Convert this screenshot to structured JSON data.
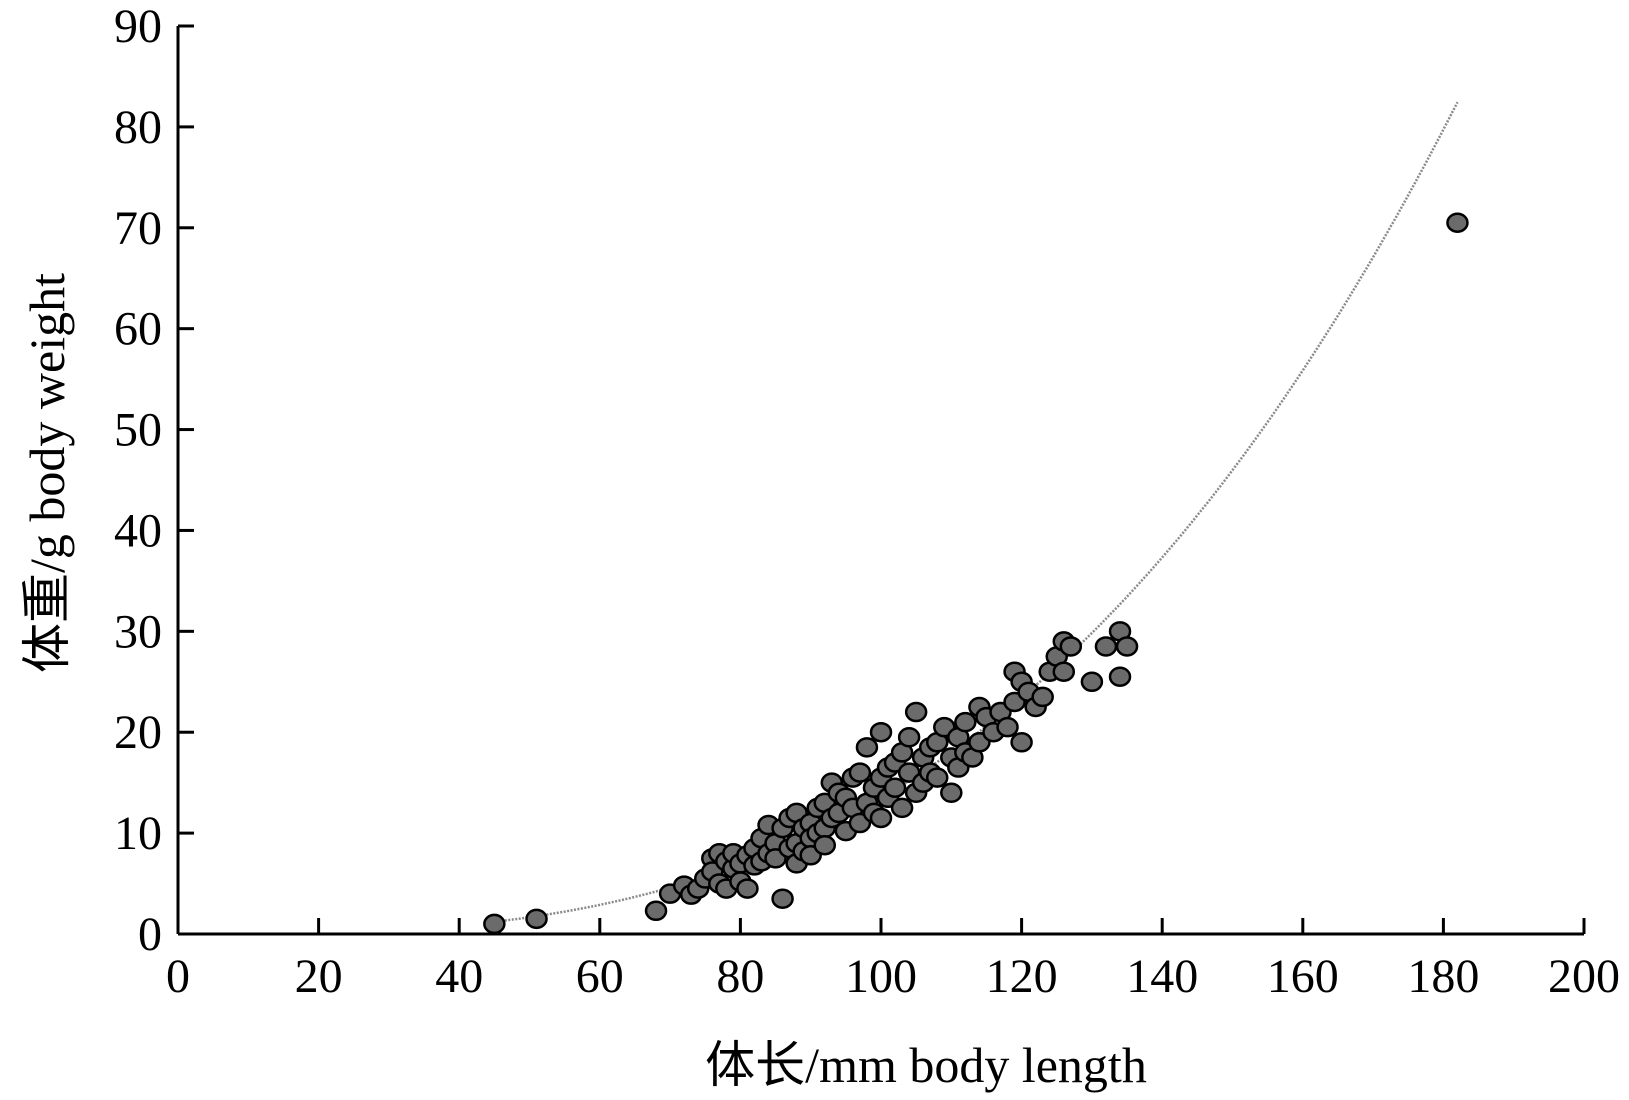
{
  "chart_data": {
    "type": "scatter",
    "title": "",
    "xlabel": "体长/mm body length",
    "ylabel": "体重/g body weight",
    "xlim": [
      0,
      200
    ],
    "ylim": [
      0,
      90
    ],
    "xticks": [
      0,
      20,
      40,
      60,
      80,
      100,
      120,
      140,
      160,
      180,
      200
    ],
    "yticks": [
      0,
      10,
      20,
      30,
      40,
      50,
      60,
      70,
      80,
      90
    ],
    "grid": false,
    "legend": "none",
    "marker_color": "#6b6b6b",
    "marker_edge_color": "#000000",
    "fit_curve_color": "#8a8a8a",
    "series": [
      {
        "points": [
          [
            45,
            1.0
          ],
          [
            51,
            1.5
          ],
          [
            68,
            2.3
          ],
          [
            70,
            4.0
          ],
          [
            72,
            4.8
          ],
          [
            73,
            3.9
          ],
          [
            74,
            4.5
          ],
          [
            75,
            5.5
          ],
          [
            76,
            7.5
          ],
          [
            76,
            6.2
          ],
          [
            77,
            8.0
          ],
          [
            77,
            5.0
          ],
          [
            78,
            7.2
          ],
          [
            78,
            4.5
          ],
          [
            79,
            6.5
          ],
          [
            79,
            8.0
          ],
          [
            80,
            7.0
          ],
          [
            80,
            5.2
          ],
          [
            81,
            7.8
          ],
          [
            81,
            4.5
          ],
          [
            82,
            8.5
          ],
          [
            82,
            6.8
          ],
          [
            83,
            9.5
          ],
          [
            83,
            7.2
          ],
          [
            84,
            10.8
          ],
          [
            84,
            8.0
          ],
          [
            85,
            9.0
          ],
          [
            85,
            7.5
          ],
          [
            86,
            10.5
          ],
          [
            86,
            3.5
          ],
          [
            87,
            11.5
          ],
          [
            87,
            8.5
          ],
          [
            88,
            12.0
          ],
          [
            88,
            9.0
          ],
          [
            88,
            7.0
          ],
          [
            89,
            10.5
          ],
          [
            89,
            8.2
          ],
          [
            90,
            11.0
          ],
          [
            90,
            9.5
          ],
          [
            90,
            7.8
          ],
          [
            91,
            12.5
          ],
          [
            91,
            10.0
          ],
          [
            92,
            13.0
          ],
          [
            92,
            10.5
          ],
          [
            92,
            8.8
          ],
          [
            93,
            15.0
          ],
          [
            93,
            11.5
          ],
          [
            94,
            12.0
          ],
          [
            94,
            14.0
          ],
          [
            95,
            13.5
          ],
          [
            95,
            10.2
          ],
          [
            96,
            15.5
          ],
          [
            96,
            12.5
          ],
          [
            97,
            16.0
          ],
          [
            97,
            11.0
          ],
          [
            98,
            18.5
          ],
          [
            98,
            13.0
          ],
          [
            99,
            14.5
          ],
          [
            99,
            12.0
          ],
          [
            100,
            20.0
          ],
          [
            100,
            15.5
          ],
          [
            100,
            11.5
          ],
          [
            101,
            16.5
          ],
          [
            101,
            13.5
          ],
          [
            102,
            17.0
          ],
          [
            102,
            14.5
          ],
          [
            103,
            18.0
          ],
          [
            103,
            12.5
          ],
          [
            104,
            16.0
          ],
          [
            104,
            19.5
          ],
          [
            105,
            22.0
          ],
          [
            105,
            14.0
          ],
          [
            106,
            17.5
          ],
          [
            106,
            15.0
          ],
          [
            107,
            18.5
          ],
          [
            107,
            16.0
          ],
          [
            108,
            19.0
          ],
          [
            108,
            15.5
          ],
          [
            109,
            20.5
          ],
          [
            110,
            17.5
          ],
          [
            110,
            14.0
          ],
          [
            111,
            19.5
          ],
          [
            111,
            16.5
          ],
          [
            112,
            21.0
          ],
          [
            112,
            18.0
          ],
          [
            113,
            17.5
          ],
          [
            114,
            22.5
          ],
          [
            114,
            19.0
          ],
          [
            115,
            21.5
          ],
          [
            116,
            20.0
          ],
          [
            117,
            22.0
          ],
          [
            118,
            20.5
          ],
          [
            119,
            26.0
          ],
          [
            119,
            23.0
          ],
          [
            120,
            25.0
          ],
          [
            120,
            19.0
          ],
          [
            121,
            24.0
          ],
          [
            122,
            22.5
          ],
          [
            123,
            23.5
          ],
          [
            124,
            26.0
          ],
          [
            125,
            27.5
          ],
          [
            126,
            29.0
          ],
          [
            126,
            26.0
          ],
          [
            127,
            28.5
          ],
          [
            130,
            25.0
          ],
          [
            132,
            28.5
          ],
          [
            134,
            30.0
          ],
          [
            134,
            25.5
          ],
          [
            135,
            28.5
          ],
          [
            182,
            70.5
          ]
        ]
      }
    ],
    "fit_curve": {
      "x_range": [
        45,
        182
      ],
      "samples": [
        [
          45,
          1.2
        ],
        [
          60,
          2.9
        ],
        [
          80,
          6.9
        ],
        [
          100,
          13.6
        ],
        [
          120,
          23.5
        ],
        [
          140,
          37.4
        ],
        [
          160,
          56.0
        ],
        [
          182,
          81.5
        ]
      ]
    }
  }
}
